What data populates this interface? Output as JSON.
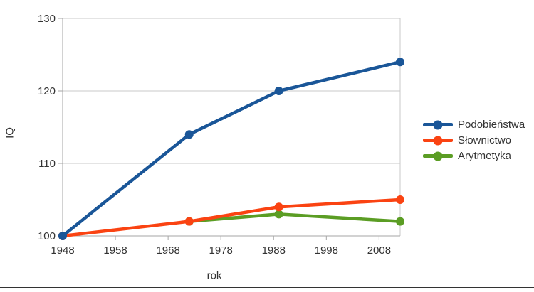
{
  "chart_data": {
    "type": "line",
    "title": "",
    "xlabel": "rok",
    "ylabel": "IQ",
    "xlim": [
      1948,
      2012
    ],
    "ylim": [
      100,
      130
    ],
    "x_ticks": [
      1948,
      1958,
      1968,
      1978,
      1988,
      1998,
      2008
    ],
    "y_ticks": [
      100,
      110,
      120,
      130
    ],
    "grid": "horizontal",
    "legend_position": "right",
    "series": [
      {
        "name": "Podobieństwa",
        "color": "#1A5698",
        "x": [
          1948,
          1972,
          1989,
          2012
        ],
        "values": [
          100,
          114,
          120,
          124
        ]
      },
      {
        "name": "Słownictwo",
        "color": "#FA4312",
        "x": [
          1948,
          1972,
          1989,
          2012
        ],
        "values": [
          100,
          102,
          104,
          105
        ]
      },
      {
        "name": "Arytmetyka",
        "color": "#5B9D24",
        "x": [
          1972,
          1989,
          2012
        ],
        "values": [
          102,
          103,
          102
        ]
      }
    ]
  },
  "colors": {
    "background": "#FFFFFF",
    "gridline": "#C8C8C8",
    "axis": "#A6A6A6",
    "text": "#333333",
    "bottom_rule": "#333333"
  }
}
